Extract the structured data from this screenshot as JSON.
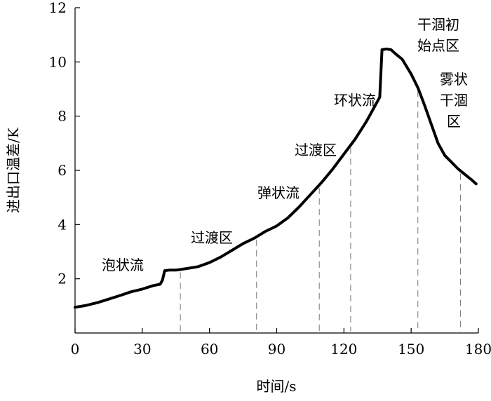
{
  "chart_data": {
    "type": "line",
    "title": "",
    "xlabel": "时间/s",
    "ylabel": "进出口温差/K",
    "xlim": [
      0,
      180
    ],
    "ylim": [
      0,
      12
    ],
    "x_ticks": [
      0,
      30,
      60,
      90,
      120,
      150,
      180
    ],
    "y_ticks": [
      2,
      4,
      6,
      8,
      10,
      12
    ],
    "grid": false,
    "legend": "none",
    "series": [
      {
        "x": [
          0,
          5,
          10,
          15,
          20,
          25,
          30,
          35,
          38,
          39,
          40,
          42,
          45,
          50,
          55,
          60,
          65,
          70,
          75,
          80,
          85,
          90,
          95,
          100,
          105,
          110,
          115,
          120,
          125,
          130,
          133,
          136,
          137,
          139,
          141,
          143,
          146,
          150,
          153,
          156,
          159,
          162,
          165,
          168,
          171,
          174,
          177,
          179
        ],
        "y": [
          0.95,
          1.02,
          1.12,
          1.25,
          1.38,
          1.52,
          1.62,
          1.75,
          1.8,
          1.95,
          2.3,
          2.32,
          2.32,
          2.38,
          2.45,
          2.6,
          2.8,
          3.05,
          3.3,
          3.5,
          3.75,
          3.95,
          4.25,
          4.65,
          5.1,
          5.55,
          6.05,
          6.6,
          7.15,
          7.8,
          8.25,
          8.7,
          10.45,
          10.48,
          10.45,
          10.3,
          10.1,
          9.55,
          9.05,
          8.4,
          7.7,
          7.0,
          6.55,
          6.3,
          6.05,
          5.85,
          5.65,
          5.5
        ],
        "color": "#000000"
      }
    ],
    "regions": [
      {
        "label": "泡状流"
      },
      {
        "label": "过渡区"
      },
      {
        "label": "弹状流"
      },
      {
        "label": "过渡区"
      },
      {
        "label": "环状流"
      },
      {
        "label": "干涸初始点区"
      },
      {
        "label": "雾状干涸区"
      }
    ],
    "region_boundaries": [
      47,
      81,
      109,
      123,
      153,
      172
    ]
  }
}
